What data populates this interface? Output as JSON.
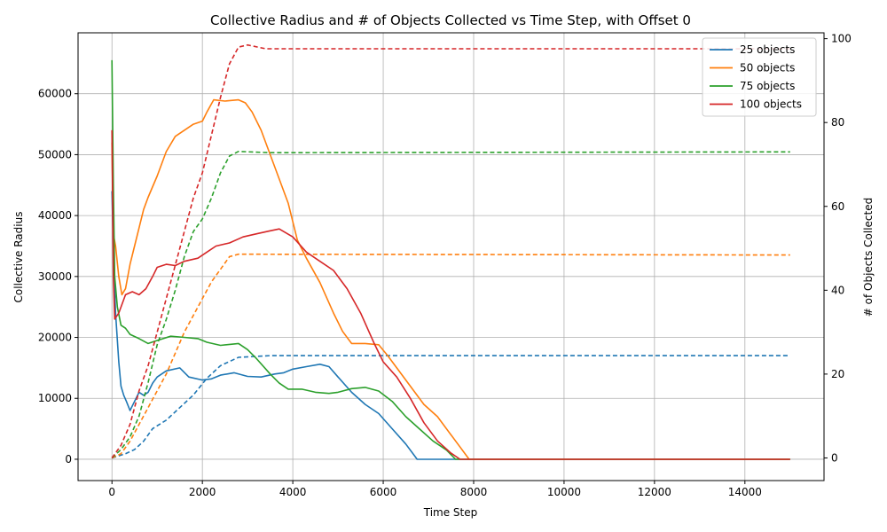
{
  "chart_data": {
    "type": "line",
    "title": "Collective Radius and # of Objects Collected vs Time Step, with Offset 0",
    "xlabel": "Time Step",
    "ylabel_left": "Collective Radius",
    "ylabel_right": "# of Objects Collected",
    "xlim": [
      -750,
      15750
    ],
    "ylim_left": [
      -3500,
      70000
    ],
    "ylim_right": [
      -5.4,
      101.4
    ],
    "x_ticks": [
      0,
      2000,
      4000,
      6000,
      8000,
      10000,
      12000,
      14000
    ],
    "y_ticks_left": [
      0,
      10000,
      20000,
      30000,
      40000,
      50000,
      60000
    ],
    "y_ticks_right": [
      0,
      20,
      40,
      60,
      80,
      100
    ],
    "grid": true,
    "legend_position": "upper right",
    "line_styles": {
      "radius": "solid",
      "collected": "dashed"
    },
    "series": [
      {
        "name": "25 objects",
        "color": "#1f77b4",
        "radius": [
          [
            0,
            44000
          ],
          [
            30,
            35000
          ],
          [
            80,
            24000
          ],
          [
            150,
            16000
          ],
          [
            200,
            12000
          ],
          [
            260,
            10500
          ],
          [
            320,
            9500
          ],
          [
            400,
            8000
          ],
          [
            500,
            9500
          ],
          [
            600,
            11000
          ],
          [
            700,
            10500
          ],
          [
            800,
            11000
          ],
          [
            900,
            12500
          ],
          [
            1000,
            13500
          ],
          [
            1200,
            14500
          ],
          [
            1500,
            15000
          ],
          [
            1700,
            13500
          ],
          [
            2000,
            13000
          ],
          [
            2200,
            13200
          ],
          [
            2400,
            13800
          ],
          [
            2700,
            14200
          ],
          [
            3000,
            13600
          ],
          [
            3300,
            13500
          ],
          [
            3600,
            14000
          ],
          [
            3800,
            14200
          ],
          [
            4000,
            14800
          ],
          [
            4300,
            15200
          ],
          [
            4600,
            15600
          ],
          [
            4800,
            15200
          ],
          [
            5000,
            13500
          ],
          [
            5300,
            11000
          ],
          [
            5600,
            9000
          ],
          [
            5900,
            7500
          ],
          [
            6200,
            5000
          ],
          [
            6500,
            2500
          ],
          [
            6750,
            0
          ],
          [
            15000,
            0
          ]
        ],
        "collected": [
          [
            0,
            0
          ],
          [
            300,
            1
          ],
          [
            500,
            2
          ],
          [
            700,
            4
          ],
          [
            900,
            7
          ],
          [
            1200,
            9
          ],
          [
            1500,
            12
          ],
          [
            1800,
            15
          ],
          [
            2100,
            19
          ],
          [
            2400,
            22
          ],
          [
            2800,
            24
          ],
          [
            3500,
            24.4
          ],
          [
            15000,
            24.4
          ]
        ]
      },
      {
        "name": "50 objects",
        "color": "#ff7f0e",
        "radius": [
          [
            0,
            52000
          ],
          [
            30,
            37000
          ],
          [
            80,
            35000
          ],
          [
            150,
            30000
          ],
          [
            220,
            27000
          ],
          [
            300,
            28000
          ],
          [
            400,
            32000
          ],
          [
            500,
            35000
          ],
          [
            600,
            38000
          ],
          [
            700,
            41000
          ],
          [
            800,
            43000
          ],
          [
            1000,
            46500
          ],
          [
            1200,
            50500
          ],
          [
            1400,
            53000
          ],
          [
            1600,
            54000
          ],
          [
            1800,
            55000
          ],
          [
            2000,
            55500
          ],
          [
            2100,
            57000
          ],
          [
            2250,
            59000
          ],
          [
            2500,
            58800
          ],
          [
            2800,
            59000
          ],
          [
            2950,
            58500
          ],
          [
            3100,
            57000
          ],
          [
            3300,
            54000
          ],
          [
            3500,
            50000
          ],
          [
            3700,
            46000
          ],
          [
            3900,
            42000
          ],
          [
            4100,
            36000
          ],
          [
            4300,
            33000
          ],
          [
            4600,
            29000
          ],
          [
            4900,
            24000
          ],
          [
            5100,
            21000
          ],
          [
            5300,
            19000
          ],
          [
            5600,
            19000
          ],
          [
            5900,
            18800
          ],
          [
            6100,
            17000
          ],
          [
            6300,
            15000
          ],
          [
            6600,
            12000
          ],
          [
            6900,
            9000
          ],
          [
            7200,
            7000
          ],
          [
            7500,
            4000
          ],
          [
            7700,
            2000
          ],
          [
            7900,
            0
          ],
          [
            15000,
            0
          ]
        ],
        "collected": [
          [
            0,
            0
          ],
          [
            200,
            1
          ],
          [
            400,
            4
          ],
          [
            600,
            8
          ],
          [
            800,
            12
          ],
          [
            1000,
            16
          ],
          [
            1200,
            20
          ],
          [
            1400,
            25
          ],
          [
            1600,
            30
          ],
          [
            1800,
            34
          ],
          [
            2000,
            38
          ],
          [
            2200,
            42
          ],
          [
            2400,
            45
          ],
          [
            2600,
            48
          ],
          [
            2800,
            48.6
          ],
          [
            15000,
            48.4
          ]
        ]
      },
      {
        "name": "75 objects",
        "color": "#2ca02c",
        "radius": [
          [
            0,
            65500
          ],
          [
            30,
            45000
          ],
          [
            60,
            30000
          ],
          [
            120,
            25000
          ],
          [
            200,
            22000
          ],
          [
            300,
            21500
          ],
          [
            400,
            20500
          ],
          [
            600,
            19800
          ],
          [
            800,
            19000
          ],
          [
            1000,
            19500
          ],
          [
            1300,
            20200
          ],
          [
            1600,
            20000
          ],
          [
            1900,
            19800
          ],
          [
            2100,
            19200
          ],
          [
            2400,
            18700
          ],
          [
            2800,
            19000
          ],
          [
            3000,
            18000
          ],
          [
            3200,
            16500
          ],
          [
            3500,
            14000
          ],
          [
            3700,
            12500
          ],
          [
            3900,
            11500
          ],
          [
            4200,
            11500
          ],
          [
            4500,
            11000
          ],
          [
            4800,
            10800
          ],
          [
            5000,
            11000
          ],
          [
            5300,
            11600
          ],
          [
            5600,
            11800
          ],
          [
            5900,
            11200
          ],
          [
            6200,
            9500
          ],
          [
            6500,
            7000
          ],
          [
            6800,
            5000
          ],
          [
            7100,
            3000
          ],
          [
            7400,
            1500
          ],
          [
            7600,
            0
          ],
          [
            15000,
            0
          ]
        ],
        "collected": [
          [
            0,
            0
          ],
          [
            200,
            2
          ],
          [
            400,
            5
          ],
          [
            600,
            10
          ],
          [
            800,
            18
          ],
          [
            1000,
            27
          ],
          [
            1200,
            33
          ],
          [
            1400,
            40
          ],
          [
            1600,
            48
          ],
          [
            1800,
            54
          ],
          [
            2000,
            57
          ],
          [
            2200,
            62
          ],
          [
            2400,
            68
          ],
          [
            2600,
            72
          ],
          [
            2800,
            73.1
          ],
          [
            3500,
            72.8
          ],
          [
            15000,
            73.0
          ]
        ]
      },
      {
        "name": "100 objects",
        "color": "#d62728",
        "radius": [
          [
            0,
            54000
          ],
          [
            30,
            30000
          ],
          [
            60,
            23000
          ],
          [
            150,
            24000
          ],
          [
            300,
            27000
          ],
          [
            450,
            27500
          ],
          [
            600,
            27000
          ],
          [
            750,
            28000
          ],
          [
            900,
            30000
          ],
          [
            1000,
            31500
          ],
          [
            1200,
            32000
          ],
          [
            1400,
            31800
          ],
          [
            1600,
            32500
          ],
          [
            1900,
            33000
          ],
          [
            2100,
            34000
          ],
          [
            2300,
            35000
          ],
          [
            2600,
            35500
          ],
          [
            2900,
            36500
          ],
          [
            3200,
            37000
          ],
          [
            3500,
            37500
          ],
          [
            3700,
            37800
          ],
          [
            4000,
            36500
          ],
          [
            4300,
            34000
          ],
          [
            4600,
            32500
          ],
          [
            4900,
            31000
          ],
          [
            5200,
            28000
          ],
          [
            5500,
            24000
          ],
          [
            5800,
            19000
          ],
          [
            6000,
            16000
          ],
          [
            6300,
            13500
          ],
          [
            6600,
            10000
          ],
          [
            6900,
            6000
          ],
          [
            7200,
            3000
          ],
          [
            7500,
            1000
          ],
          [
            7700,
            0
          ],
          [
            15000,
            0
          ]
        ],
        "collected": [
          [
            0,
            0
          ],
          [
            200,
            3
          ],
          [
            400,
            8
          ],
          [
            600,
            16
          ],
          [
            800,
            22
          ],
          [
            1000,
            30
          ],
          [
            1200,
            38
          ],
          [
            1400,
            46
          ],
          [
            1600,
            54
          ],
          [
            1800,
            62
          ],
          [
            2000,
            68
          ],
          [
            2200,
            77
          ],
          [
            2400,
            86
          ],
          [
            2600,
            94
          ],
          [
            2800,
            98
          ],
          [
            3000,
            98.5
          ],
          [
            3400,
            97.6
          ],
          [
            15000,
            97.6
          ]
        ]
      }
    ]
  }
}
